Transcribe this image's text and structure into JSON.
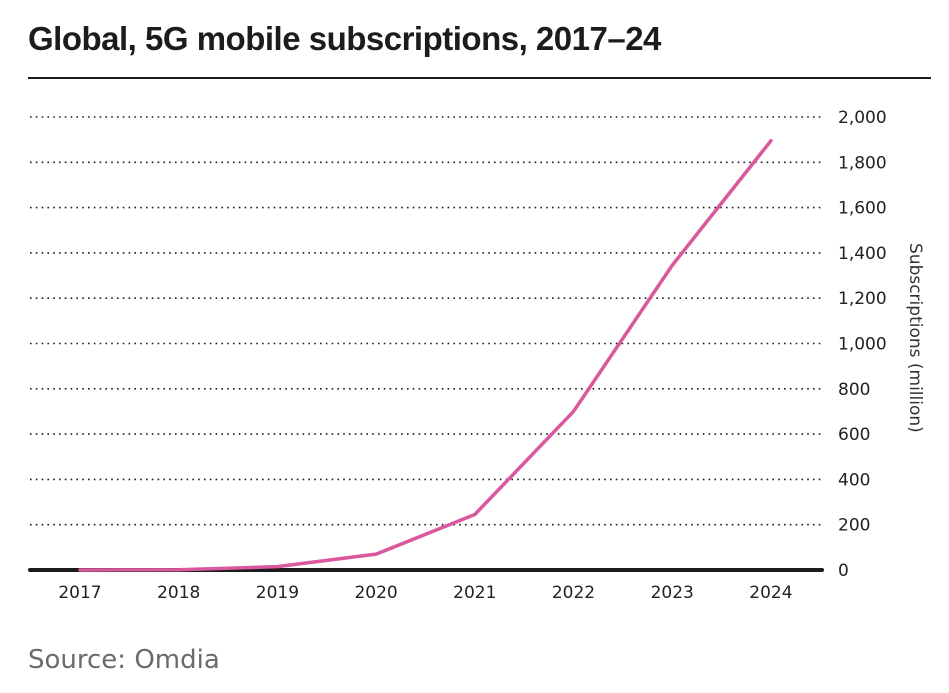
{
  "title": "Global, 5G mobile subscriptions, 2017–24",
  "source": "Source: Omdia",
  "chart_data": {
    "type": "line",
    "title": "Global, 5G mobile subscriptions, 2017–24",
    "xlabel": "",
    "ylabel": "Subscriptions (million)",
    "categories": [
      "2017",
      "2018",
      "2019",
      "2020",
      "2021",
      "2022",
      "2023",
      "2024"
    ],
    "series": [
      {
        "name": "5G mobile subscriptions",
        "color": "#d9589e",
        "values": [
          0,
          1,
          15,
          70,
          245,
          700,
          1345,
          1895
        ]
      }
    ],
    "ylim": [
      0,
      2000
    ],
    "yticks": [
      0,
      200,
      400,
      600,
      800,
      1000,
      1200,
      1400,
      1600,
      1800,
      2000
    ],
    "ytick_labels": [
      "0",
      "200",
      "400",
      "600",
      "800",
      "1,000",
      "1,200",
      "1,400",
      "1,600",
      "1,800",
      "2,000"
    ],
    "y_axis_side": "right",
    "grid": "horizontal dotted",
    "legend": "none",
    "source": "Source: Omdia"
  }
}
